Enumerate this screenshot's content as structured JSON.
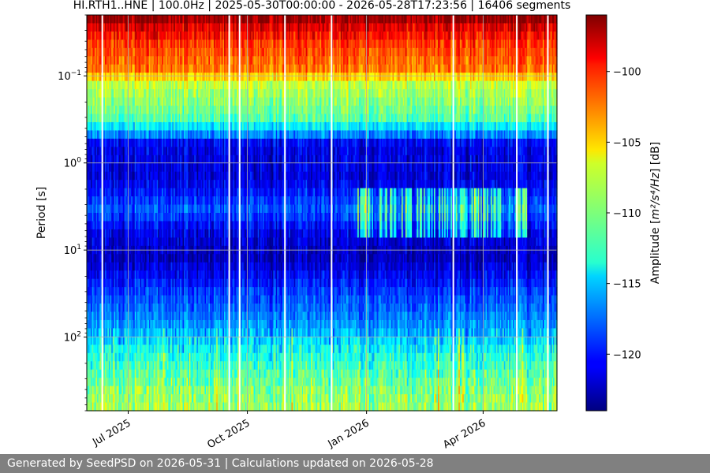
{
  "chart_data": {
    "type": "heatmap",
    "title": "HI.RTH1..HNE | 100.0Hz | 2025-05-30T00:00:00 - 2026-05-28T17:23:56 | 16406 segments",
    "xlabel": "",
    "ylabel": "Period [s]",
    "x_range": [
      "2025-05-30",
      "2026-05-28"
    ],
    "x_ticks": [
      {
        "date": "2025-07-01",
        "label": "Jul 2025"
      },
      {
        "date": "2025-10-01",
        "label": "Oct 2025"
      },
      {
        "date": "2026-01-01",
        "label": "Jan 2026"
      },
      {
        "date": "2026-04-01",
        "label": "Apr 2026"
      }
    ],
    "y_scale": "log",
    "y_inverted": true,
    "y_range": [
      0.02,
      700
    ],
    "y_ticks": [
      {
        "value": 0.1,
        "base": "10",
        "exp": "−1"
      },
      {
        "value": 1,
        "base": "10",
        "exp": "0"
      },
      {
        "value": 10,
        "base": "10",
        "exp": "1"
      },
      {
        "value": 100,
        "base": "10",
        "exp": "2"
      }
    ],
    "grid": true,
    "colorbar": {
      "label_pre": "Amplitude [",
      "label_math": "m²/s⁴/Hz",
      "label_post": "] [dB]",
      "range": [
        -124,
        -96
      ],
      "colormap": "jet",
      "ticks": [
        -100,
        -105,
        -110,
        -115,
        -120
      ]
    },
    "period_profile": [
      {
        "period": 0.02,
        "db": -96.5
      },
      {
        "period": 0.03,
        "db": -100
      },
      {
        "period": 0.09,
        "db": -103
      },
      {
        "period": 0.12,
        "db": -108
      },
      {
        "period": 0.3,
        "db": -111
      },
      {
        "period": 0.45,
        "db": -116
      },
      {
        "period": 0.6,
        "db": -121
      },
      {
        "period": 1.5,
        "db": -121.5
      },
      {
        "period": 3.5,
        "db": -118
      },
      {
        "period": 6,
        "db": -121
      },
      {
        "period": 12,
        "db": -122.5
      },
      {
        "period": 30,
        "db": -119
      },
      {
        "period": 80,
        "db": -116
      },
      {
        "period": 150,
        "db": -113
      },
      {
        "period": 400,
        "db": -110
      },
      {
        "period": 700,
        "db": -109
      }
    ],
    "data_gaps": [
      "2025-06-11",
      "2025-09-17",
      "2025-09-25",
      "2025-10-30",
      "2025-12-05",
      "2026-03-09",
      "2026-04-27",
      "2026-05-21"
    ]
  },
  "footer": {
    "text": "Generated by SeedPSD on 2026-05-31 | Calculations updated on 2026-05-28"
  }
}
